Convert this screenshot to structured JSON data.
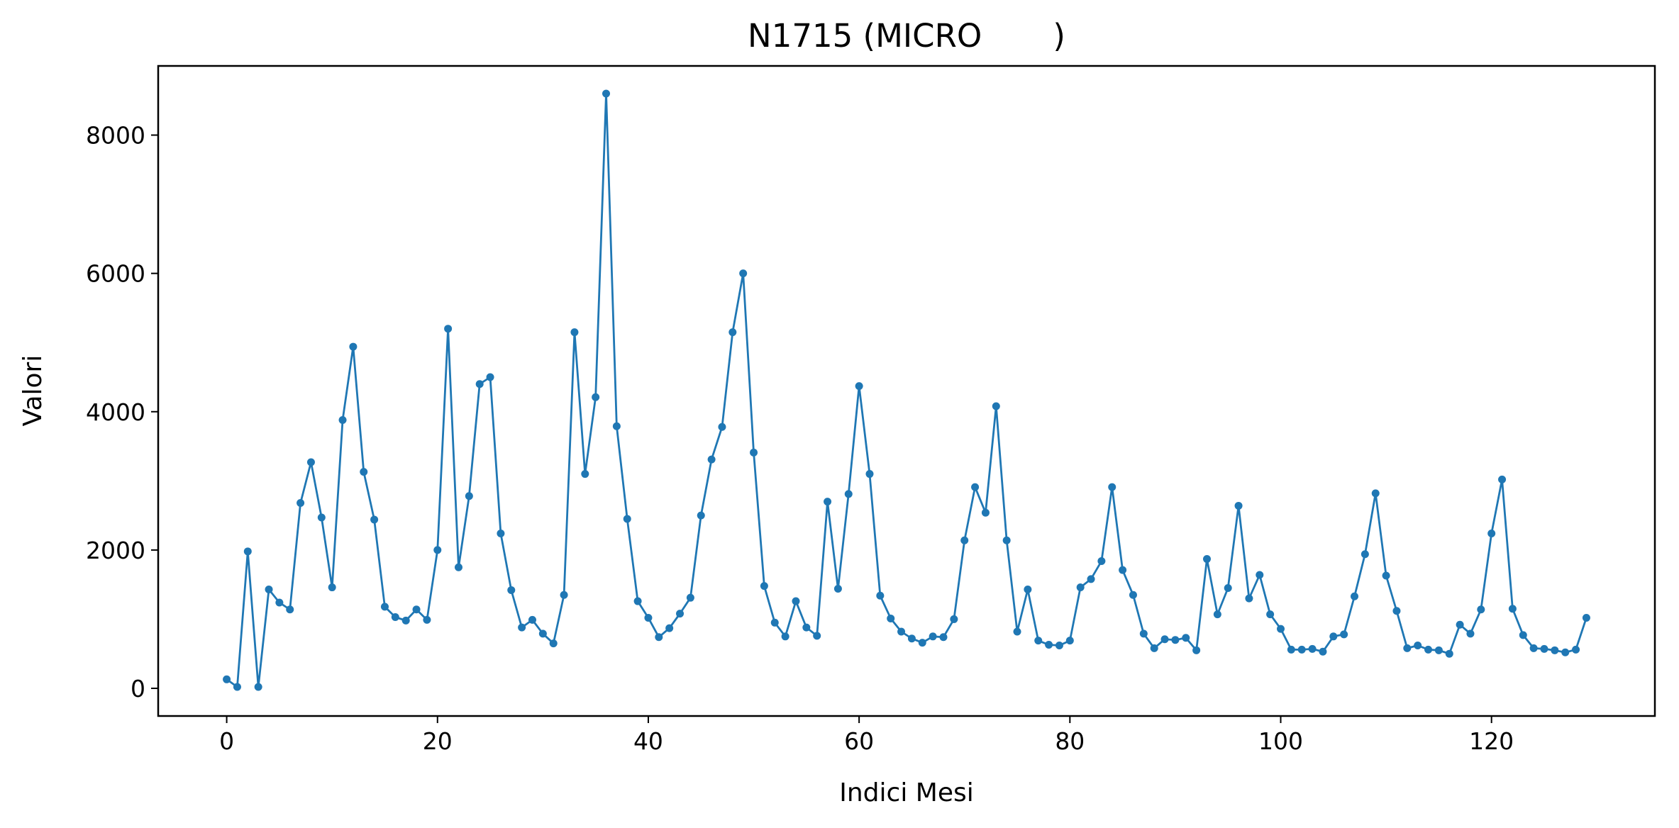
{
  "chart_data": {
    "type": "line",
    "title": "N1715 (MICRO       )",
    "xlabel": "Indici Mesi",
    "ylabel": "Valori",
    "xlim": [
      -6.5,
      135.5
    ],
    "ylim": [
      -400,
      9000
    ],
    "xticks": [
      0,
      20,
      40,
      60,
      80,
      100,
      120
    ],
    "yticks": [
      0,
      2000,
      4000,
      6000,
      8000
    ],
    "grid": false,
    "line_color": "#1f77b4",
    "series": [
      {
        "x": [
          0,
          1,
          2,
          3,
          4,
          5,
          6,
          7,
          8,
          9,
          10,
          11,
          12,
          13,
          14,
          15,
          16,
          17,
          18,
          19,
          20,
          21,
          22,
          23,
          24,
          25,
          26,
          27,
          28,
          29,
          30,
          31,
          32,
          33,
          34,
          35,
          36,
          37,
          38,
          39,
          40,
          41,
          42,
          43,
          44,
          45,
          46,
          47,
          48,
          49,
          50,
          51,
          52,
          53,
          54,
          55,
          56,
          57,
          58,
          59,
          60,
          61,
          62,
          63,
          64,
          65,
          66,
          67,
          68,
          69,
          70,
          71,
          72,
          73,
          74,
          75,
          76,
          77,
          78,
          79,
          80,
          81,
          82,
          83,
          84,
          85,
          86,
          87,
          88,
          89,
          90,
          91,
          92,
          93,
          94,
          95,
          96,
          97,
          98,
          99,
          100,
          101,
          102,
          103,
          104,
          105,
          106,
          107,
          108,
          109,
          110,
          111,
          112,
          113,
          114,
          115,
          116,
          117,
          118,
          119,
          120,
          121,
          122,
          123,
          124,
          125,
          126,
          127,
          128,
          129
        ],
        "values": [
          130,
          20,
          1980,
          20,
          1430,
          1240,
          1140,
          2680,
          3270,
          2470,
          1460,
          3880,
          4940,
          3130,
          2440,
          1180,
          1030,
          980,
          1140,
          990,
          2000,
          5200,
          1750,
          2780,
          4400,
          4500,
          2240,
          1420,
          880,
          990,
          790,
          650,
          1350,
          5150,
          3100,
          4210,
          8600,
          3790,
          2450,
          1260,
          1020,
          740,
          870,
          1080,
          1310,
          2500,
          3310,
          3780,
          5150,
          6000,
          3410,
          1480,
          950,
          750,
          1260,
          880,
          760,
          2700,
          1440,
          2810,
          4370,
          3100,
          1340,
          1010,
          820,
          720,
          660,
          750,
          740,
          1000,
          2140,
          2910,
          2540,
          4080,
          2140,
          820,
          1430,
          690,
          630,
          620,
          690,
          1460,
          1580,
          1840,
          2910,
          1710,
          1350,
          790,
          580,
          710,
          700,
          730,
          550,
          1870,
          1070,
          1450,
          2640,
          1300,
          1640,
          1070,
          860,
          560,
          560,
          570,
          530,
          750,
          780,
          1330,
          1940,
          2820,
          1630,
          1120,
          580,
          620,
          560,
          550,
          500,
          920,
          790,
          1140,
          2240,
          3020,
          1150,
          770,
          580,
          570,
          550,
          520,
          560,
          1020
        ]
      }
    ]
  }
}
